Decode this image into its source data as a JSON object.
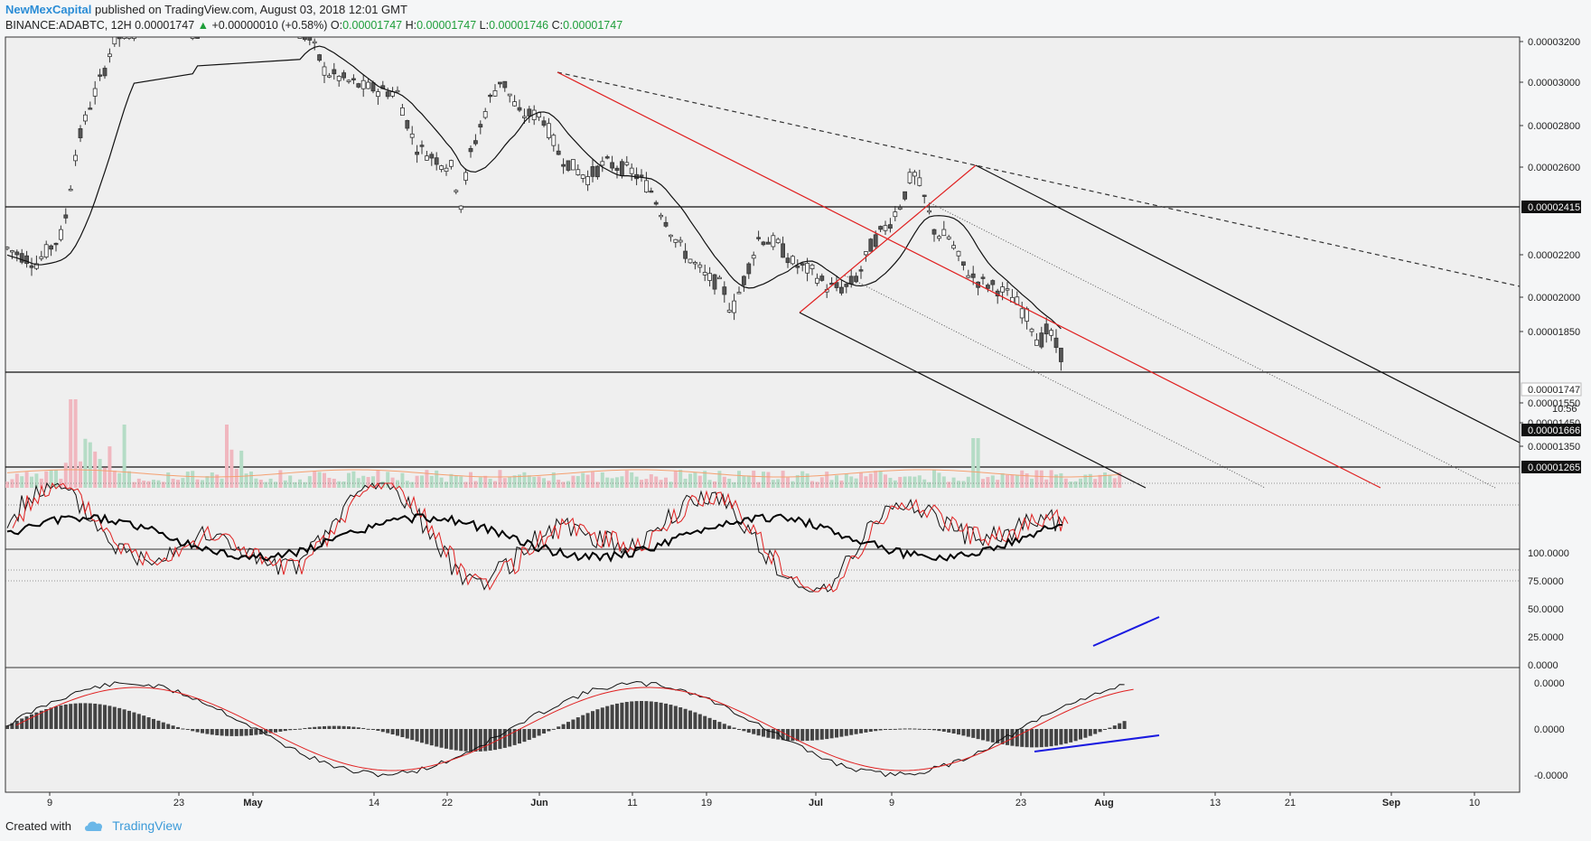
{
  "header": {
    "publisher": "NewMexCapital",
    "published_text": "published on TradingView.com, August 03, 2018 12:01 GMT",
    "symbol": "BINANCE:ADABTC, 12H",
    "last": "0.00001747",
    "change_arrow": "▲",
    "change": "+0.00000010 (+0.58%)",
    "o_label": "O:",
    "o_value": "0.00001747",
    "h_label": "H:",
    "h_value": "0.00001747",
    "l_label": "L:",
    "l_value": "0.00001746",
    "c_label": "C:",
    "c_value": "0.00001747"
  },
  "price_axis": {
    "labels": [
      "0.00003200",
      "0.00003000",
      "0.00002800",
      "0.00002600",
      "0.00002200",
      "0.00002000",
      "0.00001850",
      "0.00001550",
      "0.00001450",
      "0.00001350"
    ],
    "marked": [
      {
        "text": "0.00002415",
        "style": "dark"
      },
      {
        "text": "0.00001747",
        "style": "light"
      },
      {
        "text": "10:56",
        "style": "plain"
      },
      {
        "text": "0.00001666",
        "style": "dark"
      },
      {
        "text": "0.00001265",
        "style": "dark"
      }
    ]
  },
  "stoch_axis": {
    "labels": [
      "100.0000",
      "75.0000",
      "50.0000",
      "25.0000",
      "0.0000"
    ]
  },
  "macd_axis": {
    "labels": [
      "0.0000",
      "0.0000",
      "-0.0000"
    ]
  },
  "time_axis": {
    "labels": [
      "9",
      "23",
      "May",
      "14",
      "22",
      "Jun",
      "11",
      "19",
      "Jul",
      "9",
      "23",
      "Aug",
      "13",
      "21",
      "Sep",
      "10"
    ]
  },
  "footer": {
    "created_with": "Created with",
    "brand": "TradingView",
    "logo_icon": "tradingview-cloud-icon"
  },
  "colors": {
    "bg": "#efefef",
    "up": "#ffffff",
    "down": "#555555",
    "channel_red": "#e02020",
    "divergence_blue": "#1a1ae0",
    "volume_up": "#b5dcc6",
    "volume_down": "#f0b7bf",
    "volume_ma": "#f5a070"
  }
}
